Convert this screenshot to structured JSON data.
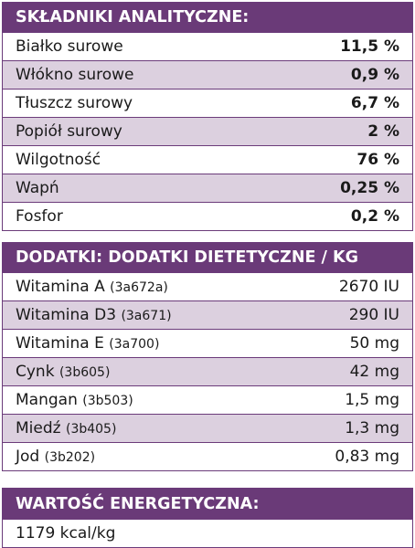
{
  "sections": {
    "analytical": {
      "title": "SKŁADNIKI ANALITYCZNE:",
      "rows": [
        {
          "label": "Białko surowe",
          "value": "11,5 %"
        },
        {
          "label": "Włókno surowe",
          "value": "0,9 %"
        },
        {
          "label": "Tłuszcz surowy",
          "value": "6,7 %"
        },
        {
          "label": "Popiół surowy",
          "value": "2 %"
        },
        {
          "label": "Wilgotność",
          "value": "76 %"
        },
        {
          "label": "Wapń",
          "value": "0,25 %"
        },
        {
          "label": "Fosfor",
          "value": "0,2 %"
        }
      ]
    },
    "additives": {
      "title": "DODATKI: DODATKI DIETETYCZNE / KG",
      "rows": [
        {
          "label": "Witamina A",
          "code": "(3a672a)",
          "value": "2670 IU"
        },
        {
          "label": "Witamina D3",
          "code": "(3a671)",
          "value": "290 IU"
        },
        {
          "label": "Witamina E",
          "code": "(3a700)",
          "value": "50 mg"
        },
        {
          "label": "Cynk",
          "code": "(3b605)",
          "value": "42 mg"
        },
        {
          "label": "Mangan",
          "code": "(3b503)",
          "value": "1,5 mg"
        },
        {
          "label": "Miedź",
          "code": "(3b405)",
          "value": "1,3 mg"
        },
        {
          "label": "Jod",
          "code": "(3b202)",
          "value": "0,83 mg"
        }
      ]
    },
    "energy": {
      "title": "WARTOŚĆ ENERGETYCZNA:",
      "value": "1179 kcal/kg"
    }
  },
  "colors": {
    "header": "#6a3a78",
    "row_alt": "#dcd0df",
    "border": "#6b3b7a"
  }
}
